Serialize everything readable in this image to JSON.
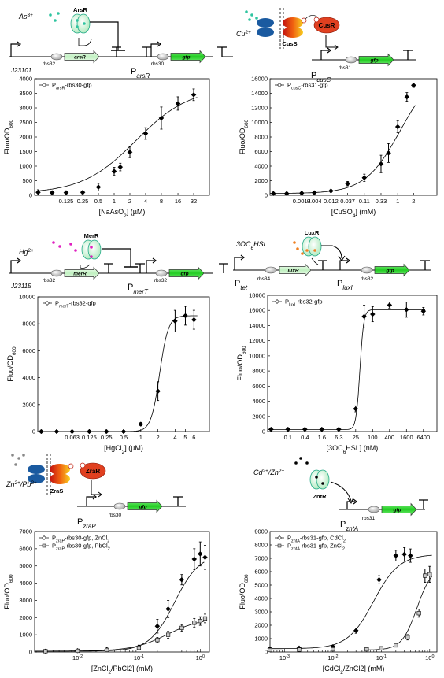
{
  "colors": {
    "gene_green": "#33cc33",
    "gene_light": "#c8f0c8",
    "metal_teal": "#2ec4a0",
    "metal_magenta": "#e020c0",
    "ahl_orange": "#f08020",
    "ion_gray": "#888888",
    "ion_black": "#000000",
    "reg_green": "#b8f0c0",
    "cus_red": "#e04020",
    "membrane_blue": "#1a5aa0",
    "membrane_orange": "#f0a020"
  },
  "diagrams": [
    {
      "inducer": "As",
      "inducer_sup": "3+",
      "regulator": "ArsR",
      "constitutive_promoter": "J23101",
      "rbs_reg": "rbs32",
      "reg_gene": "arsR",
      "promoter_main": "P",
      "promoter_sub": "arsR",
      "rbs_out": "rbs30",
      "reporter": "gfp"
    },
    {
      "inducer": "Cu",
      "inducer_sup": "2+",
      "sensor": "CusS",
      "regulator": "CusR",
      "promoter_main": "P",
      "promoter_sub": "cusC",
      "rbs_out": "rbs31",
      "reporter": "gfp"
    },
    {
      "inducer": "Hg",
      "inducer_sup": "2+",
      "regulator": "MerR",
      "constitutive_promoter": "J23115",
      "rbs_reg": "rbs32",
      "reg_gene": "merR",
      "promoter_main": "P",
      "promoter_sub": "merT",
      "rbs_out": "rbs32",
      "reporter": "gfp"
    },
    {
      "inducer": "3OC",
      "inducer_sub": "6",
      "inducer_tail": "HSL",
      "regulator": "LuxR",
      "tet_main": "P",
      "tet_sub": "tet",
      "rbs_reg": "rbs34",
      "reg_gene": "luxR",
      "promoter_main": "P",
      "promoter_sub": "luxI",
      "rbs_out": "rbs32",
      "reporter": "gfp"
    },
    {
      "inducer": "Zn",
      "inducer_sup": "2+",
      "inducer2": "Pb",
      "inducer2_sup": "2+",
      "sensor": "ZraS",
      "regulator": "ZraR",
      "promoter_main": "P",
      "promoter_sub": "zraP",
      "rbs_out": "rbs30",
      "reporter": "gfp"
    },
    {
      "inducer": "Cd",
      "inducer_sup": "2+",
      "inducer2": "Zn",
      "inducer2_sup": "2+",
      "regulator": "ZntR",
      "promoter_main": "P",
      "promoter_sub": "zntA",
      "rbs_out": "rbs31",
      "reporter": "gfp"
    }
  ],
  "chart_data": [
    {
      "type": "scatter",
      "ylabel": "Fluo/OD600",
      "xlabel": "[NaAsO2] (µM)",
      "ylim": [
        0,
        4000
      ],
      "yticks": [
        "0",
        "500",
        "1000",
        "1500",
        "2000",
        "2500",
        "3000",
        "3500",
        "4000"
      ],
      "xticks": [
        "0.125",
        "0.25",
        "0.5",
        "1",
        "2",
        "4",
        "8",
        "16",
        "32"
      ],
      "series": [
        {
          "name": "PₐᵣₛR-rbs30-gfp",
          "legend_main": "P",
          "legend_sub": "arsR",
          "legend_tail": "-rbs30-gfp",
          "points": [
            {
              "x": "0",
              "y": 100,
              "e": 90
            },
            {
              "x": "0.0625",
              "y": 90,
              "e": 40
            },
            {
              "x": "0.125",
              "y": 90,
              "e": 40
            },
            {
              "x": "0.25",
              "y": 100,
              "e": 50
            },
            {
              "x": "0.5",
              "y": 280,
              "e": 130
            },
            {
              "x": "1",
              "y": 820,
              "e": 140
            },
            {
              "x": "1.4",
              "y": 970,
              "e": 130
            },
            {
              "x": "2",
              "y": 1480,
              "e": 190
            },
            {
              "x": "4",
              "y": 2120,
              "e": 200
            },
            {
              "x": "8",
              "y": 2650,
              "e": 380
            },
            {
              "x": "16",
              "y": 3150,
              "e": 230
            },
            {
              "x": "32",
              "y": 3450,
              "e": 200
            }
          ]
        }
      ]
    },
    {
      "type": "scatter",
      "ylabel": "Fluo/OD600",
      "xlabel": "[CuSO4] (mM)",
      "ylim": [
        0,
        16000
      ],
      "yticks": [
        "0",
        "2000",
        "4000",
        "6000",
        "8000",
        "10000",
        "12000",
        "14000",
        "16000"
      ],
      "xticks": [
        "0.0014",
        "0.004",
        "0.012",
        "0.037",
        "0.11",
        "0.33",
        "1",
        "2"
      ],
      "series": [
        {
          "name": "PcusC-rbs31-gfp",
          "legend_main": "P",
          "legend_sub": "cusC",
          "legend_tail": "-rbs31-gfp",
          "points": [
            {
              "x": "0",
              "y": 250,
              "e": 100
            },
            {
              "x": "0.0005",
              "y": 250,
              "e": 100
            },
            {
              "x": "0.0014",
              "y": 300,
              "e": 100
            },
            {
              "x": "0.004",
              "y": 350,
              "e": 100
            },
            {
              "x": "0.012",
              "y": 600,
              "e": 150
            },
            {
              "x": "0.037",
              "y": 1600,
              "e": 300
            },
            {
              "x": "0.11",
              "y": 2400,
              "e": 500
            },
            {
              "x": "0.33",
              "y": 4300,
              "e": 1200
            },
            {
              "x": "0.5",
              "y": 5800,
              "e": 1300
            },
            {
              "x": "1",
              "y": 9400,
              "e": 800
            },
            {
              "x": "1.5",
              "y": 13500,
              "e": 600
            },
            {
              "x": "2",
              "y": 15100,
              "e": 300
            }
          ]
        }
      ]
    },
    {
      "type": "scatter",
      "ylabel": "Fluo/OD600",
      "xlabel": "[HgCl2] (µM)",
      "ylim": [
        0,
        10000
      ],
      "yticks": [
        "0",
        "2000",
        "4000",
        "6000",
        "8000",
        "10000"
      ],
      "xticks": [
        "0.063",
        "0.125",
        "0.25",
        "0.5",
        "1",
        "2",
        "4",
        "5",
        "6"
      ],
      "series": [
        {
          "name": "PmerT-rbs32-gfp",
          "legend_main": "P",
          "legend_sub": "merT",
          "legend_tail": "-rbs32-gfp",
          "points": [
            {
              "x": "0",
              "y": 0,
              "e": 50
            },
            {
              "x": "0.031",
              "y": 0,
              "e": 50
            },
            {
              "x": "0.063",
              "y": 0,
              "e": 50
            },
            {
              "x": "0.125",
              "y": 0,
              "e": 50
            },
            {
              "x": "0.25",
              "y": 0,
              "e": 50
            },
            {
              "x": "0.5",
              "y": 0,
              "e": 50
            },
            {
              "x": "1",
              "y": 550,
              "e": 120
            },
            {
              "x": "2",
              "y": 3000,
              "e": 700
            },
            {
              "x": "4",
              "y": 8200,
              "e": 800
            },
            {
              "x": "5",
              "y": 8600,
              "e": 700
            },
            {
              "x": "6",
              "y": 8300,
              "e": 700
            }
          ]
        }
      ]
    },
    {
      "type": "scatter",
      "ylabel": "Fluo/OD600",
      "xlabel": "[3OC6HSL] (nM)",
      "ylim": [
        0,
        18000
      ],
      "yticks": [
        "0",
        "2000",
        "4000",
        "6000",
        "8000",
        "10000",
        "12000",
        "14000",
        "16000",
        "18000"
      ],
      "xticks": [
        "0.1",
        "0.4",
        "1.6",
        "6.3",
        "25",
        "100",
        "400",
        "1600",
        "6400"
      ],
      "series": [
        {
          "name": "PluxI-rbs32-gfp",
          "legend_main": "P",
          "legend_sub": "luxI",
          "legend_tail": "-rbs32-gfp",
          "points": [
            {
              "x": "0",
              "y": 300,
              "e": 100
            },
            {
              "x": "0.1",
              "y": 300,
              "e": 100
            },
            {
              "x": "0.4",
              "y": 300,
              "e": 100
            },
            {
              "x": "1.6",
              "y": 300,
              "e": 100
            },
            {
              "x": "6.3",
              "y": 300,
              "e": 100
            },
            {
              "x": "25",
              "y": 3000,
              "e": 400
            },
            {
              "x": "50",
              "y": 15200,
              "e": 1500
            },
            {
              "x": "100",
              "y": 15500,
              "e": 1000
            },
            {
              "x": "400",
              "y": 16700,
              "e": 400
            },
            {
              "x": "1600",
              "y": 16100,
              "e": 1000
            },
            {
              "x": "6400",
              "y": 15900,
              "e": 500
            }
          ]
        }
      ]
    },
    {
      "type": "scatter",
      "ylabel": "Fluo/OD600",
      "xlabel": "[ZnCl2/PbCl2] (mM)",
      "ylim": [
        0,
        7000
      ],
      "yticks": [
        "0",
        "1000",
        "2000",
        "3000",
        "4000",
        "5000",
        "6000",
        "7000"
      ],
      "xticks": [
        "10^-2",
        "10^-1",
        "10^0"
      ],
      "xscale": "log",
      "series": [
        {
          "name": "PzraP-rbs30-gfp, ZnCl2",
          "legend_main": "P",
          "legend_sub": "zraP",
          "legend_tail": "-rbs30-gfp, ZnCl",
          "legend_tail_sub": "2",
          "marker": "diamond",
          "points": [
            {
              "x": "0.003",
              "y": 50,
              "e": 60
            },
            {
              "x": "0.01",
              "y": 80,
              "e": 60
            },
            {
              "x": "0.03",
              "y": 150,
              "e": 60
            },
            {
              "x": "0.1",
              "y": 300,
              "e": 100
            },
            {
              "x": "0.2",
              "y": 1500,
              "e": 400
            },
            {
              "x": "0.3",
              "y": 2500,
              "e": 500
            },
            {
              "x": "0.5",
              "y": 4200,
              "e": 300
            },
            {
              "x": "0.8",
              "y": 5400,
              "e": 600
            },
            {
              "x": "1.0",
              "y": 5700,
              "e": 700
            },
            {
              "x": "1.2",
              "y": 5500,
              "e": 700
            }
          ]
        },
        {
          "name": "PzraP-rbs30-gfp, PbCl2",
          "legend_main": "P",
          "legend_sub": "zraP",
          "legend_tail": "-rbs30-gfp, PbCl",
          "legend_tail_sub": "2",
          "marker": "square",
          "points": [
            {
              "x": "0.003",
              "y": 50,
              "e": 40
            },
            {
              "x": "0.01",
              "y": 70,
              "e": 40
            },
            {
              "x": "0.03",
              "y": 120,
              "e": 40
            },
            {
              "x": "0.1",
              "y": 250,
              "e": 60
            },
            {
              "x": "0.2",
              "y": 700,
              "e": 150
            },
            {
              "x": "0.3",
              "y": 1000,
              "e": 200
            },
            {
              "x": "0.5",
              "y": 1400,
              "e": 200
            },
            {
              "x": "0.8",
              "y": 1700,
              "e": 250
            },
            {
              "x": "1.0",
              "y": 1800,
              "e": 250
            },
            {
              "x": "1.2",
              "y": 1950,
              "e": 250
            }
          ]
        }
      ]
    },
    {
      "type": "scatter",
      "ylabel": "Fluo/OD600",
      "xlabel": "[CdCl2/ZnCl2] (mM)",
      "ylim": [
        0,
        9000
      ],
      "yticks": [
        "0",
        "1000",
        "2000",
        "3000",
        "4000",
        "5000",
        "6000",
        "7000",
        "8000",
        "9000"
      ],
      "xticks": [
        "10^-3",
        "10^-2",
        "10^-1",
        "10^0"
      ],
      "xscale": "log",
      "series": [
        {
          "name": "PzntA-rbs31-gfp, CdCl2",
          "legend_main": "P",
          "legend_sub": "zntA",
          "legend_tail": "-rbs31-gfp, CdCl",
          "legend_tail_sub": "2",
          "marker": "diamond",
          "points": [
            {
              "x": "0.0005",
              "y": 250,
              "e": 60
            },
            {
              "x": "0.002",
              "y": 300,
              "e": 60
            },
            {
              "x": "0.01",
              "y": 400,
              "e": 80
            },
            {
              "x": "0.03",
              "y": 1600,
              "e": 200
            },
            {
              "x": "0.09",
              "y": 5400,
              "e": 300
            },
            {
              "x": "0.2",
              "y": 7200,
              "e": 400
            },
            {
              "x": "0.3",
              "y": 7300,
              "e": 500
            },
            {
              "x": "0.4",
              "y": 7200,
              "e": 500
            }
          ]
        },
        {
          "name": "PzntA-rbs31-gfp, ZnCl2",
          "legend_main": "P",
          "legend_sub": "zntA",
          "legend_tail": "-rbs31-gfp, ZnCl",
          "legend_tail_sub": "2",
          "marker": "square",
          "points": [
            {
              "x": "0.0005",
              "y": 150,
              "e": 40
            },
            {
              "x": "0.002",
              "y": 180,
              "e": 40
            },
            {
              "x": "0.01",
              "y": 200,
              "e": 40
            },
            {
              "x": "0.05",
              "y": 200,
              "e": 40
            },
            {
              "x": "0.1",
              "y": 280,
              "e": 60
            },
            {
              "x": "0.2",
              "y": 500,
              "e": 100
            },
            {
              "x": "0.35",
              "y": 1100,
              "e": 200
            },
            {
              "x": "0.6",
              "y": 2900,
              "e": 300
            },
            {
              "x": "0.8",
              "y": 5700,
              "e": 500
            },
            {
              "x": "1.0",
              "y": 5800,
              "e": 600
            }
          ]
        }
      ]
    }
  ]
}
